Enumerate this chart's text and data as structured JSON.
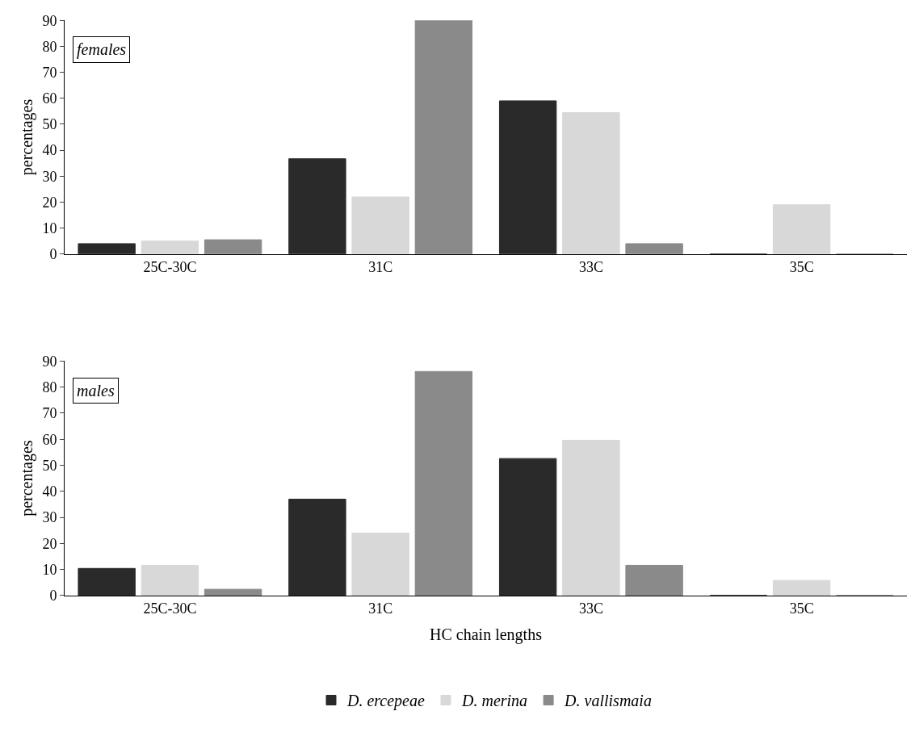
{
  "chart_data": [
    {
      "type": "bar",
      "categories": [
        "25C-30C",
        "31C",
        "33C",
        "35C"
      ],
      "ylabel": "percentages",
      "annotations": [
        "females"
      ],
      "ylim": [
        0,
        90
      ],
      "yticks": [
        0,
        10,
        20,
        30,
        40,
        50,
        60,
        70,
        80,
        90
      ],
      "grid": false,
      "series": [
        {
          "color": "#2a2a2a",
          "values": [
            4,
            36.7,
            59,
            0
          ]
        },
        {
          "color": "#d8d8d8",
          "values": [
            5,
            22,
            54.5,
            19
          ]
        },
        {
          "color": "#8a8a8a",
          "values": [
            5.5,
            90,
            4,
            0
          ]
        }
      ]
    },
    {
      "type": "bar",
      "categories": [
        "25C-30C",
        "31C",
        "33C",
        "35C"
      ],
      "xlabel": "HC chain lengths",
      "ylabel": "percentages",
      "annotations": [
        "males"
      ],
      "ylim": [
        0,
        90
      ],
      "yticks": [
        0,
        10,
        20,
        30,
        40,
        50,
        60,
        70,
        80,
        90
      ],
      "grid": false,
      "legend": "bottom",
      "series": [
        {
          "name": "D. ercepeae",
          "color": "#2a2a2a",
          "values": [
            10.4,
            37,
            52.6,
            0
          ]
        },
        {
          "name": "D. merina",
          "color": "#d8d8d8",
          "values": [
            11.6,
            24,
            59.6,
            5.8
          ]
        },
        {
          "name": "D. vallismaia",
          "color": "#8a8a8a",
          "values": [
            2.4,
            86,
            11.6,
            0
          ]
        }
      ]
    }
  ]
}
